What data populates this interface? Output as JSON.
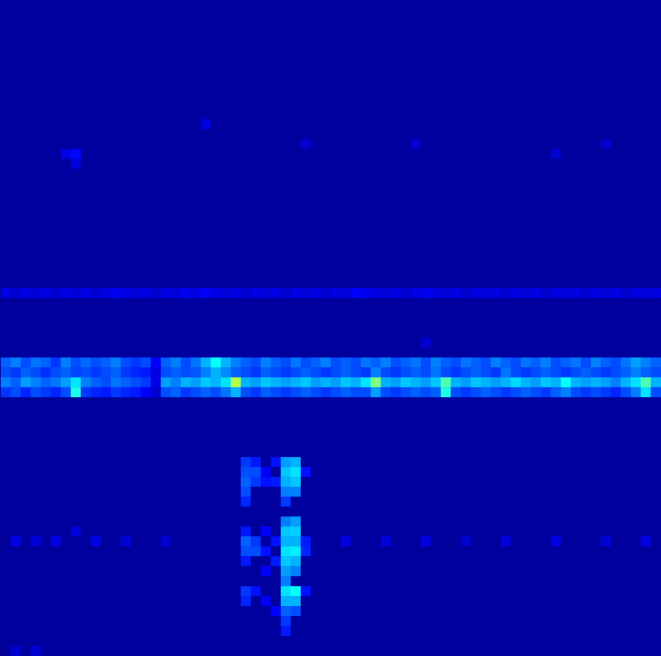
{
  "chart_data": {
    "type": "heatmap",
    "tick_labels": false,
    "grid": false,
    "n_columns": 66,
    "n_rows": 66,
    "background": 0.03,
    "color_range": [
      0,
      1
    ],
    "row_values": {
      "29": [
        0.1,
        0.08,
        0.1,
        0.09,
        0.1,
        0.08,
        0.1,
        0.09,
        0.1,
        0.08,
        0.1,
        0.11,
        0.1,
        0.09,
        0.1,
        0.08,
        0.1,
        0.09,
        0.11,
        0.1,
        0.12,
        0.1,
        0.09,
        0.1,
        0.08,
        0.1,
        0.09,
        0.1,
        0.08,
        0.1,
        0.09,
        0.1,
        0.08,
        0.1,
        0.09,
        0.12,
        0.11,
        0.1,
        0.09,
        0.1,
        0.08,
        0.1,
        0.11,
        0.1,
        0.09,
        0.1,
        0.08,
        0.1,
        0.09,
        0.1,
        0.08,
        0.1,
        0.09,
        0.1,
        0.08,
        0.1,
        0.09,
        0.1,
        0.08,
        0.1,
        0.09,
        0.1,
        0.08,
        0.1,
        0.09,
        0.1
      ],
      "36": [
        0.22,
        0.25,
        0.2,
        0.24,
        0.22,
        0.18,
        0.25,
        0.2,
        0.23,
        0.2,
        0.22,
        0.25,
        0.2,
        0.18,
        0.2,
        0.12,
        0.22,
        0.25,
        0.2,
        0.24,
        0.3,
        0.38,
        0.3,
        0.25,
        0.22,
        0.2,
        0.25,
        0.22,
        0.2,
        0.24,
        0.2,
        0.22,
        0.25,
        0.2,
        0.22,
        0.2,
        0.24,
        0.22,
        0.25,
        0.2,
        0.22,
        0.24,
        0.2,
        0.25,
        0.22,
        0.2,
        0.24,
        0.22,
        0.2,
        0.25,
        0.22,
        0.2,
        0.24,
        0.22,
        0.25,
        0.2,
        0.22,
        0.24,
        0.2,
        0.25,
        0.22,
        0.2,
        0.24,
        0.28,
        0.25,
        0.22
      ],
      "37": [
        0.2,
        0.18,
        0.22,
        0.2,
        0.17,
        0.2,
        0.22,
        0.19,
        0.2,
        0.18,
        0.2,
        0.22,
        0.18,
        0.16,
        0.15,
        0.1,
        0.2,
        0.22,
        0.2,
        0.21,
        0.25,
        0.3,
        0.26,
        0.22,
        0.2,
        0.18,
        0.22,
        0.2,
        0.18,
        0.2,
        0.22,
        0.2,
        0.18,
        0.2,
        0.22,
        0.2,
        0.18,
        0.25,
        0.2,
        0.18,
        0.2,
        0.22,
        0.2,
        0.24,
        0.2,
        0.18,
        0.2,
        0.22,
        0.2,
        0.18,
        0.24,
        0.2,
        0.18,
        0.2,
        0.22,
        0.2,
        0.18,
        0.2,
        0.22,
        0.2,
        0.18,
        0.2,
        0.22,
        0.25,
        0.22,
        0.2
      ],
      "38": [
        0.25,
        0.22,
        0.28,
        0.25,
        0.22,
        0.24,
        0.28,
        0.35,
        0.25,
        0.22,
        0.2,
        0.24,
        0.22,
        0.2,
        0.18,
        0.1,
        0.28,
        0.25,
        0.3,
        0.28,
        0.32,
        0.3,
        0.35,
        0.55,
        0.3,
        0.28,
        0.32,
        0.3,
        0.28,
        0.3,
        0.32,
        0.28,
        0.3,
        0.28,
        0.32,
        0.3,
        0.35,
        0.5,
        0.3,
        0.28,
        0.32,
        0.3,
        0.28,
        0.32,
        0.45,
        0.3,
        0.28,
        0.32,
        0.3,
        0.28,
        0.3,
        0.34,
        0.3,
        0.28,
        0.32,
        0.3,
        0.38,
        0.3,
        0.28,
        0.3,
        0.28,
        0.25,
        0.3,
        0.35,
        0.45,
        0.3
      ],
      "39": [
        0.18,
        0.2,
        0.16,
        0.2,
        0.18,
        0.16,
        0.2,
        0.4,
        0.18,
        0.16,
        0.15,
        0.18,
        0.16,
        0.15,
        0.12,
        0.08,
        0.2,
        0.22,
        0.18,
        0.2,
        0.22,
        0.2,
        0.24,
        0.3,
        0.2,
        0.18,
        0.22,
        0.2,
        0.18,
        0.2,
        0.22,
        0.2,
        0.18,
        0.2,
        0.22,
        0.2,
        0.2,
        0.28,
        0.2,
        0.18,
        0.2,
        0.22,
        0.2,
        0.22,
        0.4,
        0.2,
        0.18,
        0.2,
        0.22,
        0.2,
        0.18,
        0.2,
        0.22,
        0.2,
        0.18,
        0.22,
        0.25,
        0.2,
        0.18,
        0.2,
        0.18,
        0.16,
        0.2,
        0.25,
        0.35,
        0.2
      ]
    },
    "cells": [
      [
        6,
        15,
        0.1
      ],
      [
        7,
        15,
        0.13
      ],
      [
        7,
        16,
        0.09
      ],
      [
        20,
        12,
        0.09
      ],
      [
        30,
        14,
        0.08
      ],
      [
        41,
        14,
        0.08
      ],
      [
        55,
        15,
        0.08
      ],
      [
        60,
        14,
        0.08
      ],
      [
        42,
        34,
        0.08
      ],
      [
        24,
        46,
        0.18
      ],
      [
        24,
        47,
        0.2
      ],
      [
        24,
        48,
        0.22
      ],
      [
        24,
        49,
        0.2
      ],
      [
        24,
        50,
        0.16
      ],
      [
        24,
        53,
        0.15
      ],
      [
        24,
        54,
        0.22
      ],
      [
        24,
        55,
        0.2
      ],
      [
        24,
        56,
        0.15
      ],
      [
        24,
        59,
        0.18
      ],
      [
        24,
        60,
        0.16
      ],
      [
        25,
        46,
        0.15
      ],
      [
        25,
        47,
        0.2
      ],
      [
        25,
        48,
        0.18
      ],
      [
        25,
        54,
        0.18
      ],
      [
        25,
        55,
        0.2
      ],
      [
        25,
        59,
        0.14
      ],
      [
        26,
        47,
        0.12
      ],
      [
        26,
        48,
        0.14
      ],
      [
        26,
        53,
        0.12
      ],
      [
        26,
        55,
        0.14
      ],
      [
        26,
        57,
        0.12
      ],
      [
        26,
        60,
        0.12
      ],
      [
        27,
        46,
        0.14
      ],
      [
        27,
        48,
        0.15
      ],
      [
        27,
        54,
        0.14
      ],
      [
        27,
        56,
        0.15
      ],
      [
        27,
        61,
        0.12
      ],
      [
        28,
        46,
        0.28
      ],
      [
        28,
        47,
        0.32
      ],
      [
        28,
        48,
        0.3
      ],
      [
        28,
        49,
        0.25
      ],
      [
        28,
        50,
        0.18
      ],
      [
        28,
        52,
        0.25
      ],
      [
        28,
        53,
        0.32
      ],
      [
        28,
        54,
        0.3
      ],
      [
        28,
        55,
        0.35
      ],
      [
        28,
        56,
        0.32
      ],
      [
        28,
        57,
        0.28
      ],
      [
        28,
        58,
        0.25
      ],
      [
        28,
        59,
        0.35
      ],
      [
        28,
        60,
        0.3
      ],
      [
        28,
        61,
        0.22
      ],
      [
        28,
        62,
        0.18
      ],
      [
        28,
        63,
        0.15
      ],
      [
        29,
        46,
        0.3
      ],
      [
        29,
        47,
        0.35
      ],
      [
        29,
        48,
        0.32
      ],
      [
        29,
        49,
        0.25
      ],
      [
        29,
        52,
        0.28
      ],
      [
        29,
        53,
        0.33
      ],
      [
        29,
        54,
        0.3
      ],
      [
        29,
        55,
        0.36
      ],
      [
        29,
        56,
        0.3
      ],
      [
        29,
        57,
        0.25
      ],
      [
        29,
        59,
        0.38
      ],
      [
        29,
        60,
        0.3
      ],
      [
        29,
        61,
        0.2
      ],
      [
        30,
        47,
        0.14
      ],
      [
        30,
        54,
        0.15
      ],
      [
        30,
        55,
        0.16
      ],
      [
        30,
        59,
        0.14
      ],
      [
        1,
        54,
        0.1
      ],
      [
        3,
        54,
        0.09
      ],
      [
        5,
        54,
        0.1
      ],
      [
        7,
        53,
        0.09
      ],
      [
        9,
        54,
        0.1
      ],
      [
        12,
        54,
        0.09
      ],
      [
        16,
        54,
        0.08
      ],
      [
        34,
        54,
        0.1
      ],
      [
        38,
        54,
        0.09
      ],
      [
        42,
        54,
        0.1
      ],
      [
        46,
        54,
        0.08
      ],
      [
        50,
        54,
        0.09
      ],
      [
        55,
        54,
        0.1
      ],
      [
        60,
        54,
        0.09
      ],
      [
        64,
        54,
        0.1
      ],
      [
        1,
        65,
        0.08
      ],
      [
        3,
        65,
        0.08
      ]
    ]
  }
}
